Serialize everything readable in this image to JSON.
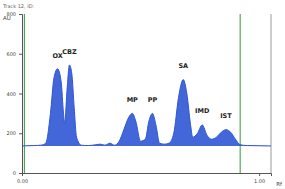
{
  "chart_data": {
    "type": "line",
    "title": "Track 12, ID:",
    "y_label": "AU",
    "x_label": "Rf",
    "x": [
      0.0,
      0.02,
      0.05,
      0.08,
      0.1,
      0.12,
      0.135,
      0.15,
      0.165,
      0.175,
      0.18,
      0.19,
      0.2,
      0.21,
      0.22,
      0.23,
      0.25,
      0.28,
      0.31,
      0.33,
      0.35,
      0.37,
      0.39,
      0.41,
      0.43,
      0.45,
      0.465,
      0.48,
      0.5,
      0.52,
      0.535,
      0.55,
      0.565,
      0.58,
      0.6,
      0.62,
      0.64,
      0.66,
      0.68,
      0.695,
      0.71,
      0.72,
      0.74,
      0.76,
      0.78,
      0.8,
      0.82,
      0.84,
      0.86,
      0.88,
      0.9,
      0.92,
      0.95,
      1.0,
      1.05
    ],
    "series": [
      {
        "color": "#2f55d4",
        "values": [
          136,
          137,
          138,
          140,
          150,
          300,
          480,
          524,
          460,
          300,
          250,
          420,
          543,
          500,
          330,
          180,
          140,
          138,
          142,
          145,
          140,
          150,
          140,
          160,
          220,
          280,
          300,
          260,
          160,
          170,
          260,
          300,
          240,
          150,
          145,
          150,
          200,
          380,
          470,
          400,
          250,
          180,
          200,
          242,
          190,
          170,
          180,
          205,
          218,
          205,
          170,
          142,
          138,
          137,
          136
        ]
      }
    ],
    "baseline": 136,
    "xlim": [
      0,
      1.05
    ],
    "xticks": [
      {
        "value": 0,
        "label": "0.00"
      },
      {
        "value": 1,
        "label": "1.00"
      }
    ],
    "ylim": [
      0,
      800
    ],
    "yticks": [
      0,
      200,
      400,
      600,
      800
    ],
    "grid": false,
    "annotations": [
      {
        "text": "OX",
        "x": 0.15,
        "y": 580
      },
      {
        "text": "CBZ",
        "x": 0.2,
        "y": 600
      },
      {
        "text": "MP",
        "x": 0.465,
        "y": 355
      },
      {
        "text": "PP",
        "x": 0.55,
        "y": 355
      },
      {
        "text": "SA",
        "x": 0.68,
        "y": 530
      },
      {
        "text": "IMD",
        "x": 0.76,
        "y": 300
      },
      {
        "text": "IST",
        "x": 0.86,
        "y": 275
      }
    ],
    "vertical_lines": [
      0.01,
      0.92
    ]
  }
}
